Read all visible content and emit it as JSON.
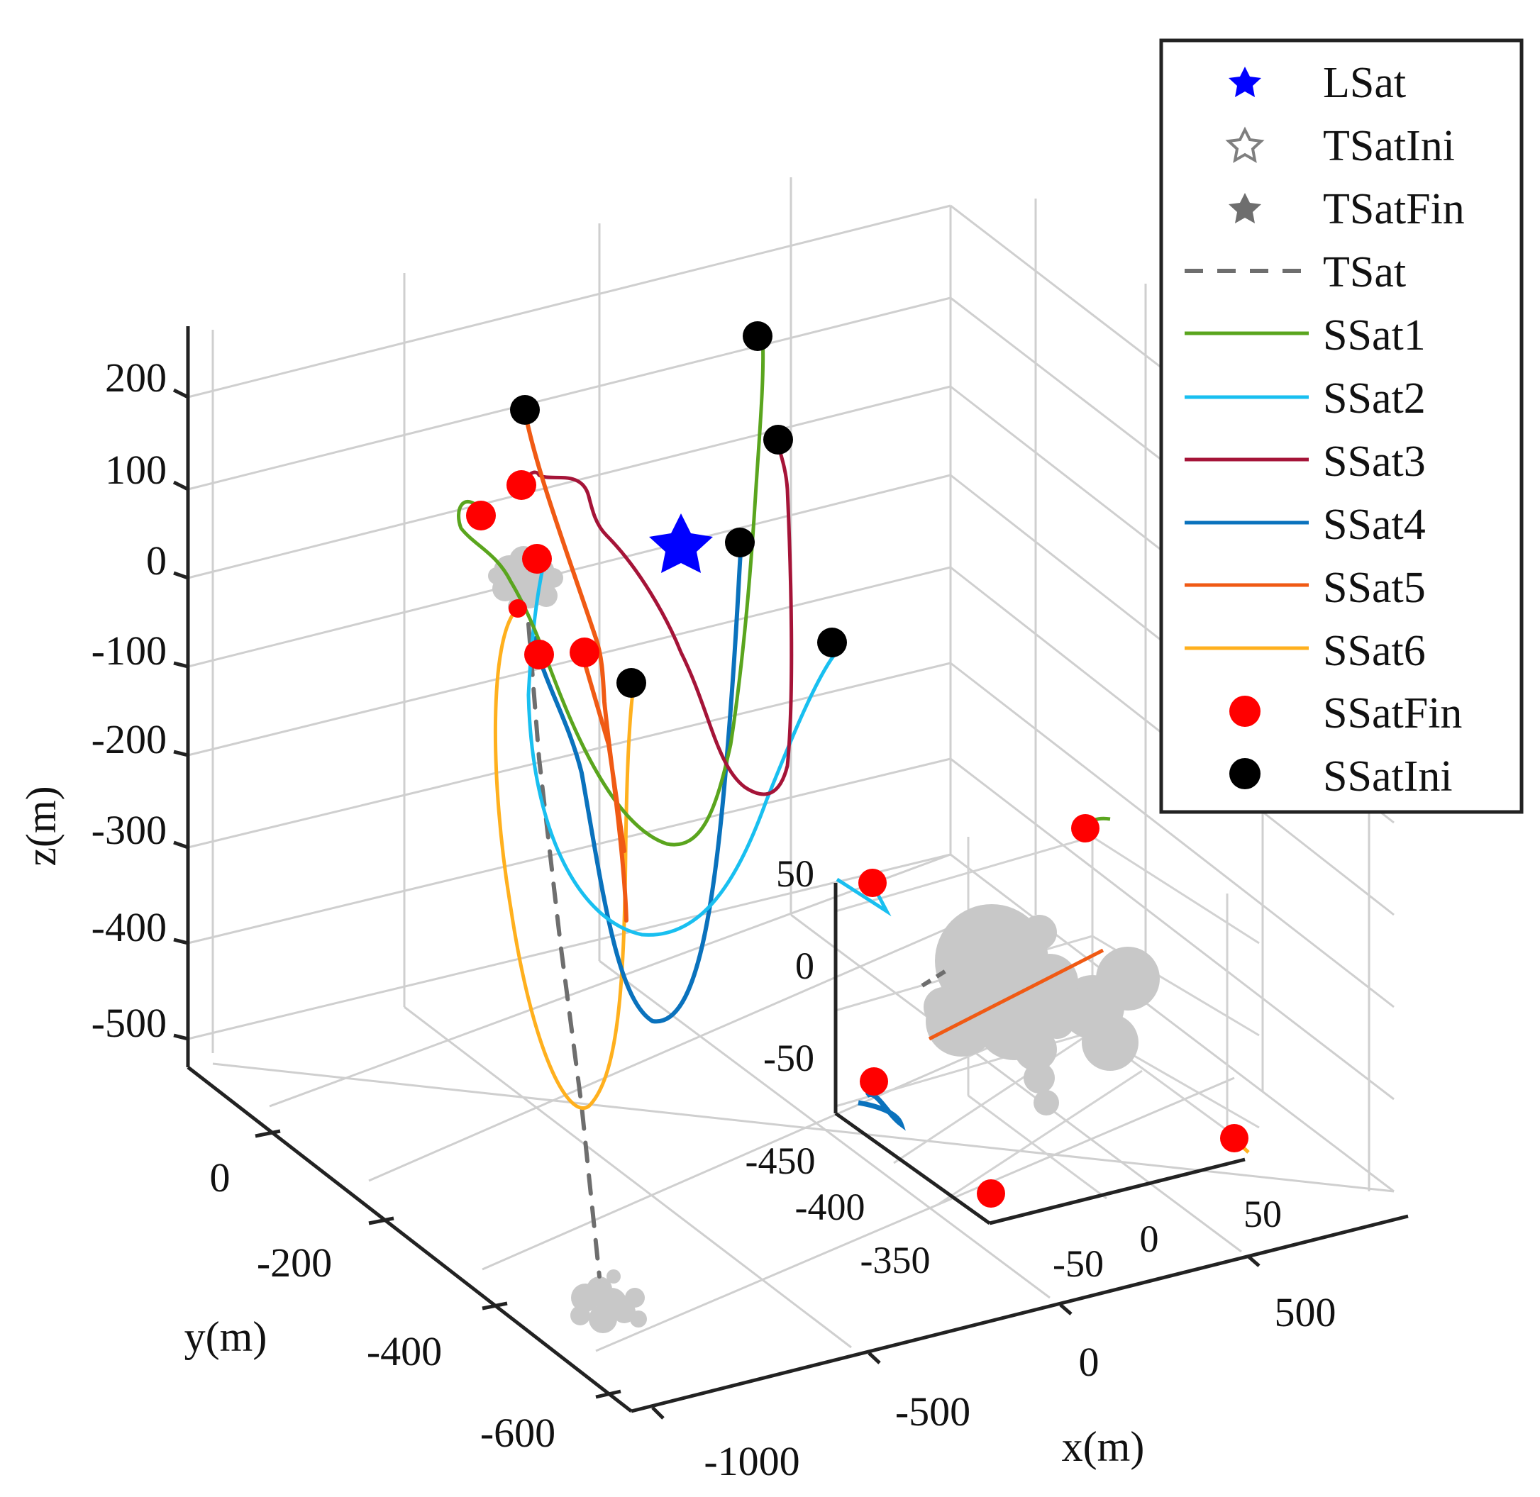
{
  "chart_data": {
    "type": "line3d",
    "main": {
      "x_axis": {
        "label": "x(m)",
        "ticks": [
          "-1000",
          "-500",
          "0",
          "500"
        ]
      },
      "y_axis": {
        "label": "y(m)",
        "ticks": [
          "0",
          "-200",
          "-400",
          "-600"
        ]
      },
      "z_axis": {
        "label": "z(m)",
        "ticks": [
          "200",
          "100",
          "0",
          "-100",
          "-200",
          "-300",
          "-400",
          "-500"
        ]
      },
      "grid": true
    },
    "inset": {
      "x_ticks": [
        "-50",
        "0",
        "50"
      ],
      "y_ticks": [
        "-450",
        "-400",
        "-350"
      ],
      "z_ticks": [
        "50",
        "0",
        "-50"
      ],
      "grid": true
    },
    "legend": {
      "position": "top-right",
      "entries": [
        {
          "label": "LSat",
          "marker": "filled-star",
          "color": "#0000ff"
        },
        {
          "label": "TSatIni",
          "marker": "hollow-star",
          "color": "#7f7f7f"
        },
        {
          "label": "TSatFin",
          "marker": "filled-star",
          "color": "#6e6e6e"
        },
        {
          "label": "TSat",
          "marker": "dashed-line",
          "color": "#6e6e6e"
        },
        {
          "label": "SSat1",
          "marker": "line",
          "color": "#5aa51e"
        },
        {
          "label": "SSat2",
          "marker": "line",
          "color": "#19bff0"
        },
        {
          "label": "SSat3",
          "marker": "line",
          "color": "#a51438"
        },
        {
          "label": "SSat4",
          "marker": "line",
          "color": "#0a72bd"
        },
        {
          "label": "SSat5",
          "marker": "line",
          "color": "#f05a14"
        },
        {
          "label": "SSat6",
          "marker": "line",
          "color": "#ffb01e"
        },
        {
          "label": "SSatFin",
          "marker": "dot",
          "color": "#ff0000"
        },
        {
          "label": "SSatIni",
          "marker": "dot",
          "color": "#000000"
        }
      ]
    }
  }
}
